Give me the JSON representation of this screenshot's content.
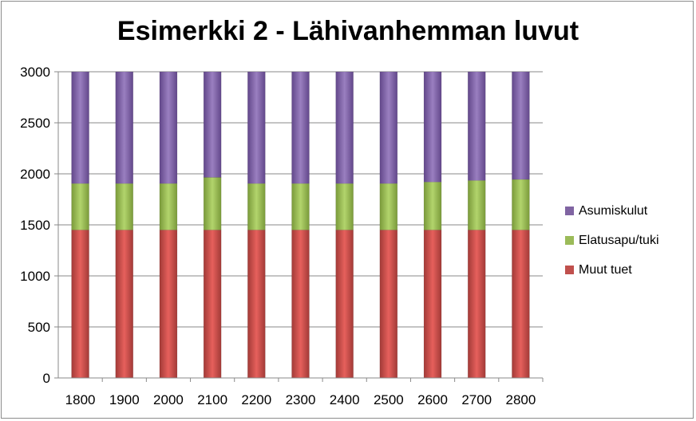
{
  "chart_data": {
    "type": "bar",
    "stacked": true,
    "title": "Esimerkki 2 - Lähivanhemman luvut",
    "categories": [
      "1800",
      "1900",
      "2000",
      "2100",
      "2200",
      "2300",
      "2400",
      "2500",
      "2600",
      "2700",
      "2800"
    ],
    "ylim": [
      0,
      3000
    ],
    "yticks": [
      "0",
      "500",
      "1000",
      "1500",
      "2000",
      "2500",
      "3000"
    ],
    "grid": true,
    "legend_position": "right",
    "series": [
      {
        "name": "Muut tuet",
        "color": "#c0504d",
        "values": [
          1450,
          1450,
          1450,
          1450,
          1450,
          1450,
          1450,
          1450,
          1450,
          1450,
          1450
        ]
      },
      {
        "name": "Elatusapu/tuki",
        "color": "#9bbb59",
        "values": [
          455,
          455,
          455,
          515,
          455,
          455,
          455,
          455,
          470,
          485,
          495
        ]
      },
      {
        "name": "Asumiskulut",
        "color": "#8064a2",
        "values": [
          1095,
          1095,
          1095,
          1035,
          1095,
          1095,
          1095,
          1095,
          1080,
          1065,
          1055
        ]
      }
    ]
  }
}
